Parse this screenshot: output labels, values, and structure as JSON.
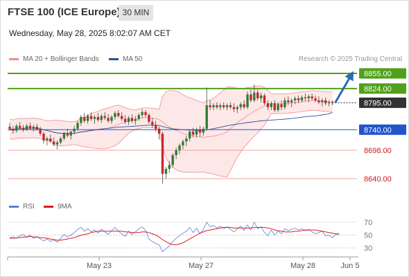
{
  "header": {
    "title": "FTSE 100 (ICE Europe)",
    "timeframe": "30 MIN",
    "datetime": "Wednesday, May 28, 2025 8:02:07 AM CET",
    "credit": "Research © 2025 Trading Central"
  },
  "legend": {
    "bollinger_label": "MA 20 + Bollinger Bands",
    "ma50_label": "MA 50",
    "rsi_label": "RSI",
    "ma9_label": "9MA"
  },
  "colors": {
    "up_candle": "#2f7d32",
    "down_candle": "#c62828",
    "bollinger": "#f28a8a",
    "bollinger_fill": "#fde4e4",
    "ma50": "#2c4f9a",
    "green_level": "#52a01a",
    "blue_level": "#2255cc",
    "red_level": "#f0a0a0",
    "rsi": "#5a7fd6",
    "rsi_ma": "#dd1c1c",
    "arrow": "#2a6cb0"
  },
  "chart_data": {
    "type": "candlestick",
    "instrument": "FTSE 100 (ICE Europe)",
    "interval": "30 MIN",
    "ylim": [
      8620,
      8870
    ],
    "x_tick_labels": [
      "May 23",
      "May 27",
      "May 28",
      "Jun 5"
    ],
    "levels": [
      {
        "value": 8855.0,
        "label": "8855.00",
        "kind": "resistance"
      },
      {
        "value": 8824.0,
        "label": "8824.00",
        "kind": "resistance"
      },
      {
        "value": 8795.0,
        "label": "8795.00",
        "kind": "last"
      },
      {
        "value": 8740.0,
        "label": "8740.00",
        "kind": "pivot"
      },
      {
        "value": 8698.0,
        "label": "8698.00",
        "kind": "support"
      },
      {
        "value": 8640.0,
        "label": "8640.00",
        "kind": "support"
      }
    ],
    "candles": [
      [
        8746,
        8754,
        8738,
        8742
      ],
      [
        8742,
        8748,
        8732,
        8738
      ],
      [
        8738,
        8752,
        8734,
        8748
      ],
      [
        8748,
        8756,
        8740,
        8744
      ],
      [
        8744,
        8750,
        8736,
        8740
      ],
      [
        8740,
        8752,
        8738,
        8748
      ],
      [
        8748,
        8755,
        8740,
        8742
      ],
      [
        8742,
        8750,
        8736,
        8746
      ],
      [
        8746,
        8752,
        8738,
        8740
      ],
      [
        8740,
        8746,
        8728,
        8732
      ],
      [
        8732,
        8736,
        8712,
        8718
      ],
      [
        8718,
        8726,
        8708,
        8722
      ],
      [
        8722,
        8730,
        8714,
        8716
      ],
      [
        8716,
        8724,
        8706,
        8710
      ],
      [
        8710,
        8718,
        8700,
        8714
      ],
      [
        8714,
        8726,
        8710,
        8722
      ],
      [
        8722,
        8736,
        8718,
        8732
      ],
      [
        8732,
        8742,
        8724,
        8728
      ],
      [
        8728,
        8738,
        8720,
        8736
      ],
      [
        8736,
        8748,
        8730,
        8742
      ],
      [
        8742,
        8758,
        8738,
        8754
      ],
      [
        8754,
        8770,
        8748,
        8766
      ],
      [
        8766,
        8774,
        8754,
        8758
      ],
      [
        8758,
        8772,
        8752,
        8768
      ],
      [
        8768,
        8776,
        8758,
        8762
      ],
      [
        8762,
        8770,
        8752,
        8766
      ],
      [
        8766,
        8774,
        8756,
        8760
      ],
      [
        8760,
        8772,
        8754,
        8768
      ],
      [
        8768,
        8776,
        8760,
        8764
      ],
      [
        8764,
        8772,
        8754,
        8758
      ],
      [
        8758,
        8770,
        8752,
        8766
      ],
      [
        8766,
        8778,
        8760,
        8774
      ],
      [
        8774,
        8780,
        8764,
        8768
      ],
      [
        8768,
        8776,
        8758,
        8762
      ],
      [
        8762,
        8770,
        8752,
        8756
      ],
      [
        8756,
        8768,
        8750,
        8764
      ],
      [
        8764,
        8772,
        8754,
        8758
      ],
      [
        8758,
        8768,
        8750,
        8762
      ],
      [
        8762,
        8774,
        8758,
        8770
      ],
      [
        8770,
        8782,
        8764,
        8776
      ],
      [
        8776,
        8780,
        8766,
        8770
      ],
      [
        8770,
        8774,
        8752,
        8756
      ],
      [
        8756,
        8764,
        8744,
        8750
      ],
      [
        8750,
        8758,
        8736,
        8742
      ],
      [
        8742,
        8746,
        8720,
        8732
      ],
      [
        8732,
        8736,
        8630,
        8650
      ],
      [
        8650,
        8664,
        8640,
        8660
      ],
      [
        8660,
        8676,
        8652,
        8668
      ],
      [
        8668,
        8692,
        8662,
        8688
      ],
      [
        8688,
        8704,
        8680,
        8698
      ],
      [
        8698,
        8712,
        8690,
        8708
      ],
      [
        8708,
        8720,
        8700,
        8716
      ],
      [
        8716,
        8728,
        8706,
        8722
      ],
      [
        8722,
        8740,
        8716,
        8736
      ],
      [
        8736,
        8744,
        8724,
        8730
      ],
      [
        8730,
        8744,
        8724,
        8740
      ],
      [
        8740,
        8748,
        8726,
        8734
      ],
      [
        8734,
        8746,
        8728,
        8742
      ],
      [
        8742,
        8826,
        8738,
        8790
      ],
      [
        8790,
        8800,
        8780,
        8786
      ],
      [
        8786,
        8794,
        8780,
        8790
      ],
      [
        8790,
        8796,
        8782,
        8786
      ],
      [
        8786,
        8794,
        8780,
        8790
      ],
      [
        8790,
        8796,
        8782,
        8786
      ],
      [
        8786,
        8794,
        8780,
        8790
      ],
      [
        8790,
        8796,
        8782,
        8786
      ],
      [
        8786,
        8794,
        8776,
        8782
      ],
      [
        8782,
        8790,
        8774,
        8786
      ],
      [
        8786,
        8796,
        8780,
        8792
      ],
      [
        8792,
        8800,
        8782,
        8786
      ],
      [
        8786,
        8818,
        8782,
        8812
      ],
      [
        8812,
        8822,
        8796,
        8800
      ],
      [
        8800,
        8832,
        8796,
        8816
      ],
      [
        8816,
        8822,
        8800,
        8804
      ],
      [
        8804,
        8816,
        8796,
        8810
      ],
      [
        8810,
        8814,
        8790,
        8794
      ],
      [
        8794,
        8800,
        8780,
        8786
      ],
      [
        8786,
        8798,
        8780,
        8794
      ],
      [
        8794,
        8800,
        8776,
        8780
      ],
      [
        8780,
        8796,
        8776,
        8792
      ],
      [
        8792,
        8800,
        8780,
        8786
      ],
      [
        8786,
        8806,
        8782,
        8800
      ],
      [
        8800,
        8808,
        8790,
        8796
      ],
      [
        8796,
        8804,
        8786,
        8800
      ],
      [
        8800,
        8808,
        8792,
        8804
      ],
      [
        8804,
        8810,
        8794,
        8800
      ],
      [
        8800,
        8810,
        8796,
        8806
      ],
      [
        8806,
        8814,
        8798,
        8804
      ],
      [
        8804,
        8812,
        8796,
        8808
      ],
      [
        8808,
        8814,
        8800,
        8804
      ],
      [
        8804,
        8810,
        8796,
        8800
      ],
      [
        8800,
        8808,
        8792,
        8796
      ],
      [
        8796,
        8804,
        8788,
        8800
      ],
      [
        8800,
        8806,
        8790,
        8794
      ],
      [
        8794,
        8800,
        8788,
        8796
      ],
      [
        8796,
        8800,
        8790,
        8795
      ]
    ],
    "rsi": {
      "ylim": [
        20,
        80
      ],
      "ticks": [
        70,
        50,
        30
      ],
      "rsi_values": [
        46,
        47,
        45,
        49,
        51,
        47,
        50,
        45,
        48,
        44,
        41,
        44,
        40,
        43,
        39,
        45,
        51,
        47,
        50,
        54,
        59,
        62,
        56,
        60,
        55,
        58,
        53,
        59,
        55,
        51,
        57,
        62,
        56,
        52,
        48,
        56,
        51,
        55,
        60,
        63,
        57,
        44,
        40,
        37,
        35,
        24,
        29,
        33,
        40,
        45,
        49,
        53,
        56,
        62,
        54,
        61,
        52,
        59,
        70,
        63,
        65,
        61,
        64,
        60,
        63,
        59,
        55,
        60,
        64,
        57,
        66,
        58,
        70,
        60,
        63,
        54,
        49,
        58,
        50,
        56,
        52,
        60,
        57,
        59,
        61,
        58,
        60,
        57,
        59,
        55,
        52,
        54,
        56,
        49,
        50,
        46,
        51,
        50
      ],
      "ma9_values": [
        45,
        45,
        46,
        46,
        47,
        47,
        48,
        47,
        47,
        46,
        46,
        45,
        44,
        43,
        42,
        42,
        43,
        44,
        45,
        46,
        48,
        50,
        51,
        52,
        54,
        55,
        56,
        56,
        56,
        56,
        56,
        56,
        56,
        56,
        55,
        55,
        54,
        54,
        54,
        55,
        55,
        54,
        52,
        50,
        47,
        43,
        40,
        37,
        35,
        35,
        36,
        38,
        41,
        44,
        47,
        50,
        53,
        55,
        57,
        58,
        59,
        60,
        61,
        62,
        62,
        62,
        61,
        61,
        61,
        61,
        61,
        61,
        62,
        62,
        62,
        62,
        61,
        60,
        58,
        57,
        56,
        55,
        55,
        55,
        56,
        56,
        57,
        58,
        58,
        58,
        58,
        57,
        56,
        55,
        54,
        53,
        52,
        52
      ]
    }
  }
}
